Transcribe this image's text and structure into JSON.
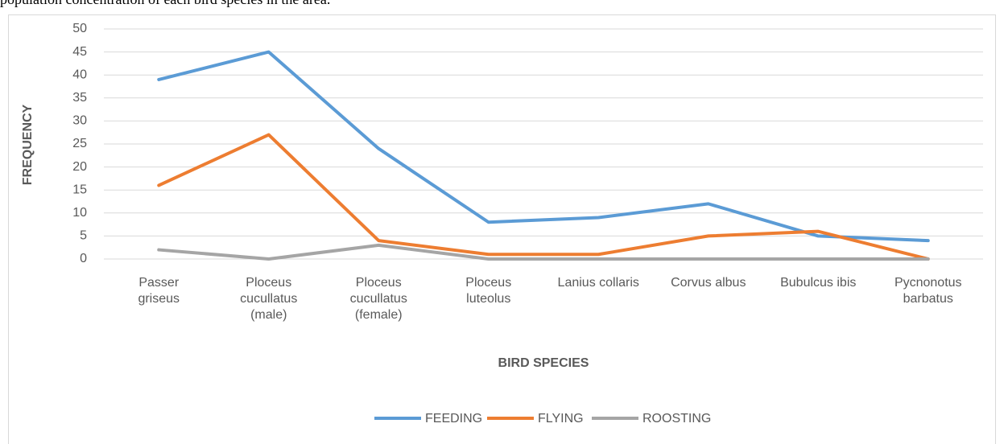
{
  "caption": "population concentration of each bird species in the area.",
  "chart_data": {
    "type": "line",
    "x_label": "BIRD SPECIES",
    "y_label": "FREQUENCY",
    "categories": [
      "Passer\ngriseus",
      "Ploceus\ncucullatus\n(male)",
      "Ploceus\ncucullatus\n(female)",
      "Ploceus\nluteolus",
      "Lanius collaris",
      "Corvus albus",
      "Bubulcus ibis",
      "Pycnonotus\nbarbatus"
    ],
    "series": [
      {
        "name": "FEEDING",
        "color": "#5b9bd5",
        "values": [
          39,
          45,
          24,
          8,
          9,
          12,
          5,
          4
        ]
      },
      {
        "name": "FLYING",
        "color": "#ed7d31",
        "values": [
          16,
          27,
          4,
          1,
          1,
          5,
          6,
          0
        ]
      },
      {
        "name": "ROOSTING",
        "color": "#a5a5a5",
        "values": [
          2,
          0,
          3,
          0,
          0,
          0,
          0,
          0
        ]
      }
    ],
    "ylim": [
      0,
      50
    ],
    "yticks": [
      0,
      5,
      10,
      15,
      20,
      25,
      30,
      35,
      40,
      45,
      50
    ],
    "grid": true,
    "legend": "bottom"
  }
}
